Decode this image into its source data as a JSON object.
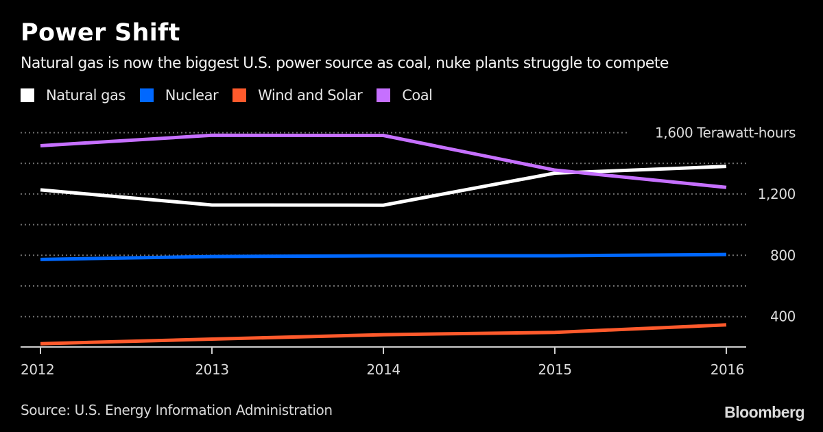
{
  "header": {
    "title": "Power Shift",
    "subtitle": "Natural gas is now the biggest U.S. power source as coal, nuke plants struggle to compete"
  },
  "legend": [
    {
      "label": "Natural gas",
      "color": "#ffffff"
    },
    {
      "label": "Nuclear",
      "color": "#0068ff"
    },
    {
      "label": "Wind and Solar",
      "color": "#ff5a2c"
    },
    {
      "label": "Coal",
      "color": "#c670ff"
    }
  ],
  "footer": {
    "source": "Source: U.S. Energy Information Administration",
    "brand": "Bloomberg"
  },
  "chart_data": {
    "type": "line",
    "title": "Power Shift",
    "subtitle": "Natural gas is now the biggest U.S. power source as coal, nuke plants struggle to compete",
    "x": [
      "2012",
      "2013",
      "2014",
      "2015",
      "2016"
    ],
    "xlabel": "",
    "ylabel": "Terawatt-hours",
    "ylim": [
      0,
      1600
    ],
    "y_ticks": [
      {
        "value": 400,
        "label": "400"
      },
      {
        "value": 800,
        "label": "800"
      },
      {
        "value": 1200,
        "label": "1,200"
      },
      {
        "value": 1600,
        "label": "1,600 Terawatt-hours"
      }
    ],
    "gridlines": [
      400,
      600,
      800,
      1000,
      1200,
      1400,
      1600
    ],
    "grid": true,
    "legend_position": "top-left",
    "series": [
      {
        "name": "Natural gas",
        "color": "#ffffff",
        "values": [
          1227,
          1128,
          1127,
          1336,
          1380
        ]
      },
      {
        "name": "Nuclear",
        "color": "#0068ff",
        "values": [
          773,
          792,
          797,
          797,
          805
        ]
      },
      {
        "name": "Wind and Solar",
        "color": "#ff5a2c",
        "values": [
          223,
          253,
          282,
          297,
          346
        ]
      },
      {
        "name": "Coal",
        "color": "#c670ff",
        "values": [
          1515,
          1583,
          1582,
          1356,
          1243
        ]
      }
    ]
  }
}
